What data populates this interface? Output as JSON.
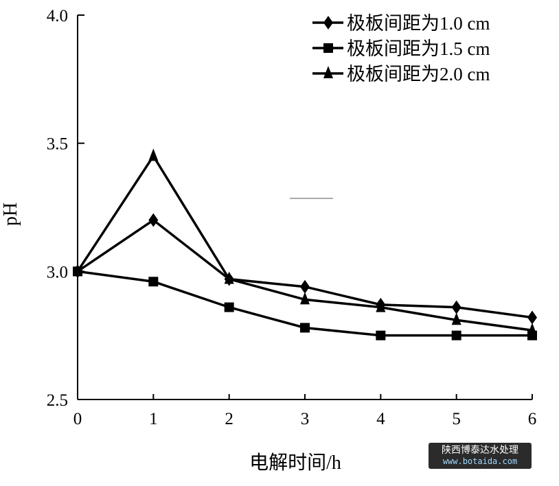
{
  "chart_data": {
    "type": "line",
    "title": "",
    "xlabel": "电解时间/h",
    "ylabel": "pH",
    "xlim": [
      0,
      6
    ],
    "ylim": [
      2.5,
      4.0
    ],
    "x": [
      0,
      1,
      2,
      3,
      4,
      5,
      6
    ],
    "xticks": [
      "0",
      "1",
      "2",
      "3",
      "4",
      "5",
      "6"
    ],
    "yticks": [
      "2.5",
      "3.0",
      "3.5",
      "4.0"
    ],
    "grid": false,
    "legend_position": "top-right",
    "series": [
      {
        "name": "极板间距为1.0 cm",
        "marker": "diamond",
        "color": "#000000",
        "values": [
          3.0,
          3.2,
          2.97,
          2.94,
          2.87,
          2.86,
          2.82
        ]
      },
      {
        "name": "极板间距为1.5 cm",
        "marker": "square",
        "color": "#000000",
        "values": [
          3.0,
          2.96,
          2.86,
          2.78,
          2.75,
          2.75,
          2.75
        ]
      },
      {
        "name": "极板间距为2.0 cm",
        "marker": "triangle",
        "color": "#000000",
        "values": [
          3.0,
          3.45,
          2.97,
          2.89,
          2.86,
          2.81,
          2.77
        ]
      }
    ]
  },
  "watermark": {
    "name": "陕西博泰达水处理",
    "url": "www.botaida.com"
  }
}
